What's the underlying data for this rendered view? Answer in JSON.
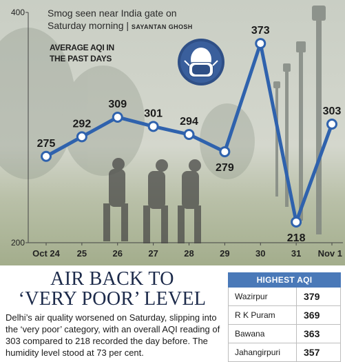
{
  "photo_caption": {
    "text": "Smog seen near India gate  on Saturday morning |",
    "credit": "SAYANTAN GHOSH"
  },
  "chart_label": [
    "AVERAGE AQI IN",
    "THE PAST DAYS"
  ],
  "icon": "face-mask-icon",
  "colors": {
    "line": "#2f62ad",
    "marker_fill": "#ffffff",
    "table_header": "#4a79b8",
    "headline": "#1c2a4a"
  },
  "chart_data": {
    "type": "line",
    "title": "AVERAGE AQI IN THE PAST DAYS",
    "categories": [
      "Oct 24",
      "25",
      "26",
      "27",
      "28",
      "29",
      "30",
      "31",
      "Nov 1"
    ],
    "values": [
      275,
      292,
      309,
      301,
      294,
      279,
      373,
      218,
      303
    ],
    "ylim": [
      200,
      400
    ],
    "yticks": [
      "200",
      "400"
    ],
    "xlabel": "",
    "ylabel": "",
    "grid": false
  },
  "headline": [
    "AIR BACK TO",
    "‘VERY POOR’ LEVEL"
  ],
  "body": "Delhi’s air quality worsened on Saturday, slipping into the ‘very poor’ category, with an overall AQI reading of 303 compared to 218 recorded the day before.  The humidity level stood at 73 per cent.",
  "aqi_table": {
    "header": "HIGHEST AQI",
    "rows": [
      {
        "name": "Wazirpur",
        "value": "379"
      },
      {
        "name": "R K Puram",
        "value": "369"
      },
      {
        "name": "Bawana",
        "value": "363"
      },
      {
        "name": "Jahangirpuri",
        "value": "357"
      }
    ]
  }
}
